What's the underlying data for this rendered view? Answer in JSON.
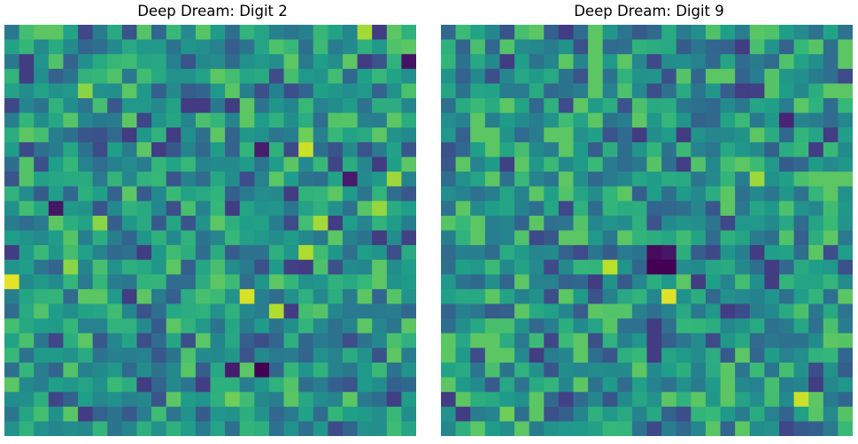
{
  "chart_data": [
    {
      "type": "heatmap",
      "title": "Deep Dream: Digit 2",
      "colormap": "viridis",
      "axes_visible": false,
      "grid": false,
      "rows": 28,
      "cols": 28,
      "seed": 2,
      "hotspots": [
        {
          "row": 0,
          "col": 24,
          "value": 0.86
        },
        {
          "row": 1,
          "col": 26,
          "value": 0.72
        },
        {
          "row": 2,
          "col": 27,
          "value": 0.05
        },
        {
          "row": 4,
          "col": 5,
          "value": 0.82
        },
        {
          "row": 7,
          "col": 20,
          "value": 0.78
        },
        {
          "row": 8,
          "col": 20,
          "value": 0.92
        },
        {
          "row": 8,
          "col": 17,
          "value": 0.08
        },
        {
          "row": 10,
          "col": 26,
          "value": 0.85
        },
        {
          "row": 10,
          "col": 23,
          "value": 0.07
        },
        {
          "row": 12,
          "col": 25,
          "value": 0.84
        },
        {
          "row": 12,
          "col": 3,
          "value": 0.06
        },
        {
          "row": 13,
          "col": 6,
          "value": 0.82
        },
        {
          "row": 13,
          "col": 21,
          "value": 0.86
        },
        {
          "row": 15,
          "col": 20,
          "value": 0.88
        },
        {
          "row": 16,
          "col": 4,
          "value": 0.82
        },
        {
          "row": 17,
          "col": 0,
          "value": 0.96
        },
        {
          "row": 18,
          "col": 16,
          "value": 0.94
        },
        {
          "row": 19,
          "col": 18,
          "value": 0.88
        },
        {
          "row": 23,
          "col": 17,
          "value": 0.0
        },
        {
          "row": 23,
          "col": 15,
          "value": 0.08
        },
        {
          "row": 25,
          "col": 15,
          "value": 0.78
        }
      ]
    },
    {
      "type": "heatmap",
      "title": "Deep Dream: Digit 9",
      "colormap": "viridis",
      "axes_visible": false,
      "grid": false,
      "rows": 28,
      "cols": 28,
      "seed": 9,
      "hotspots": [
        {
          "row": 6,
          "col": 23,
          "value": 0.1
        },
        {
          "row": 8,
          "col": 8,
          "value": 0.74
        },
        {
          "row": 10,
          "col": 21,
          "value": 0.85
        },
        {
          "row": 15,
          "col": 14,
          "value": 0.03
        },
        {
          "row": 15,
          "col": 15,
          "value": 0.06
        },
        {
          "row": 16,
          "col": 11,
          "value": 0.9
        },
        {
          "row": 16,
          "col": 14,
          "value": 0.0
        },
        {
          "row": 16,
          "col": 15,
          "value": 0.0
        },
        {
          "row": 18,
          "col": 15,
          "value": 0.95
        },
        {
          "row": 25,
          "col": 24,
          "value": 0.92
        },
        {
          "row": 26,
          "col": 4,
          "value": 0.78
        }
      ]
    }
  ]
}
